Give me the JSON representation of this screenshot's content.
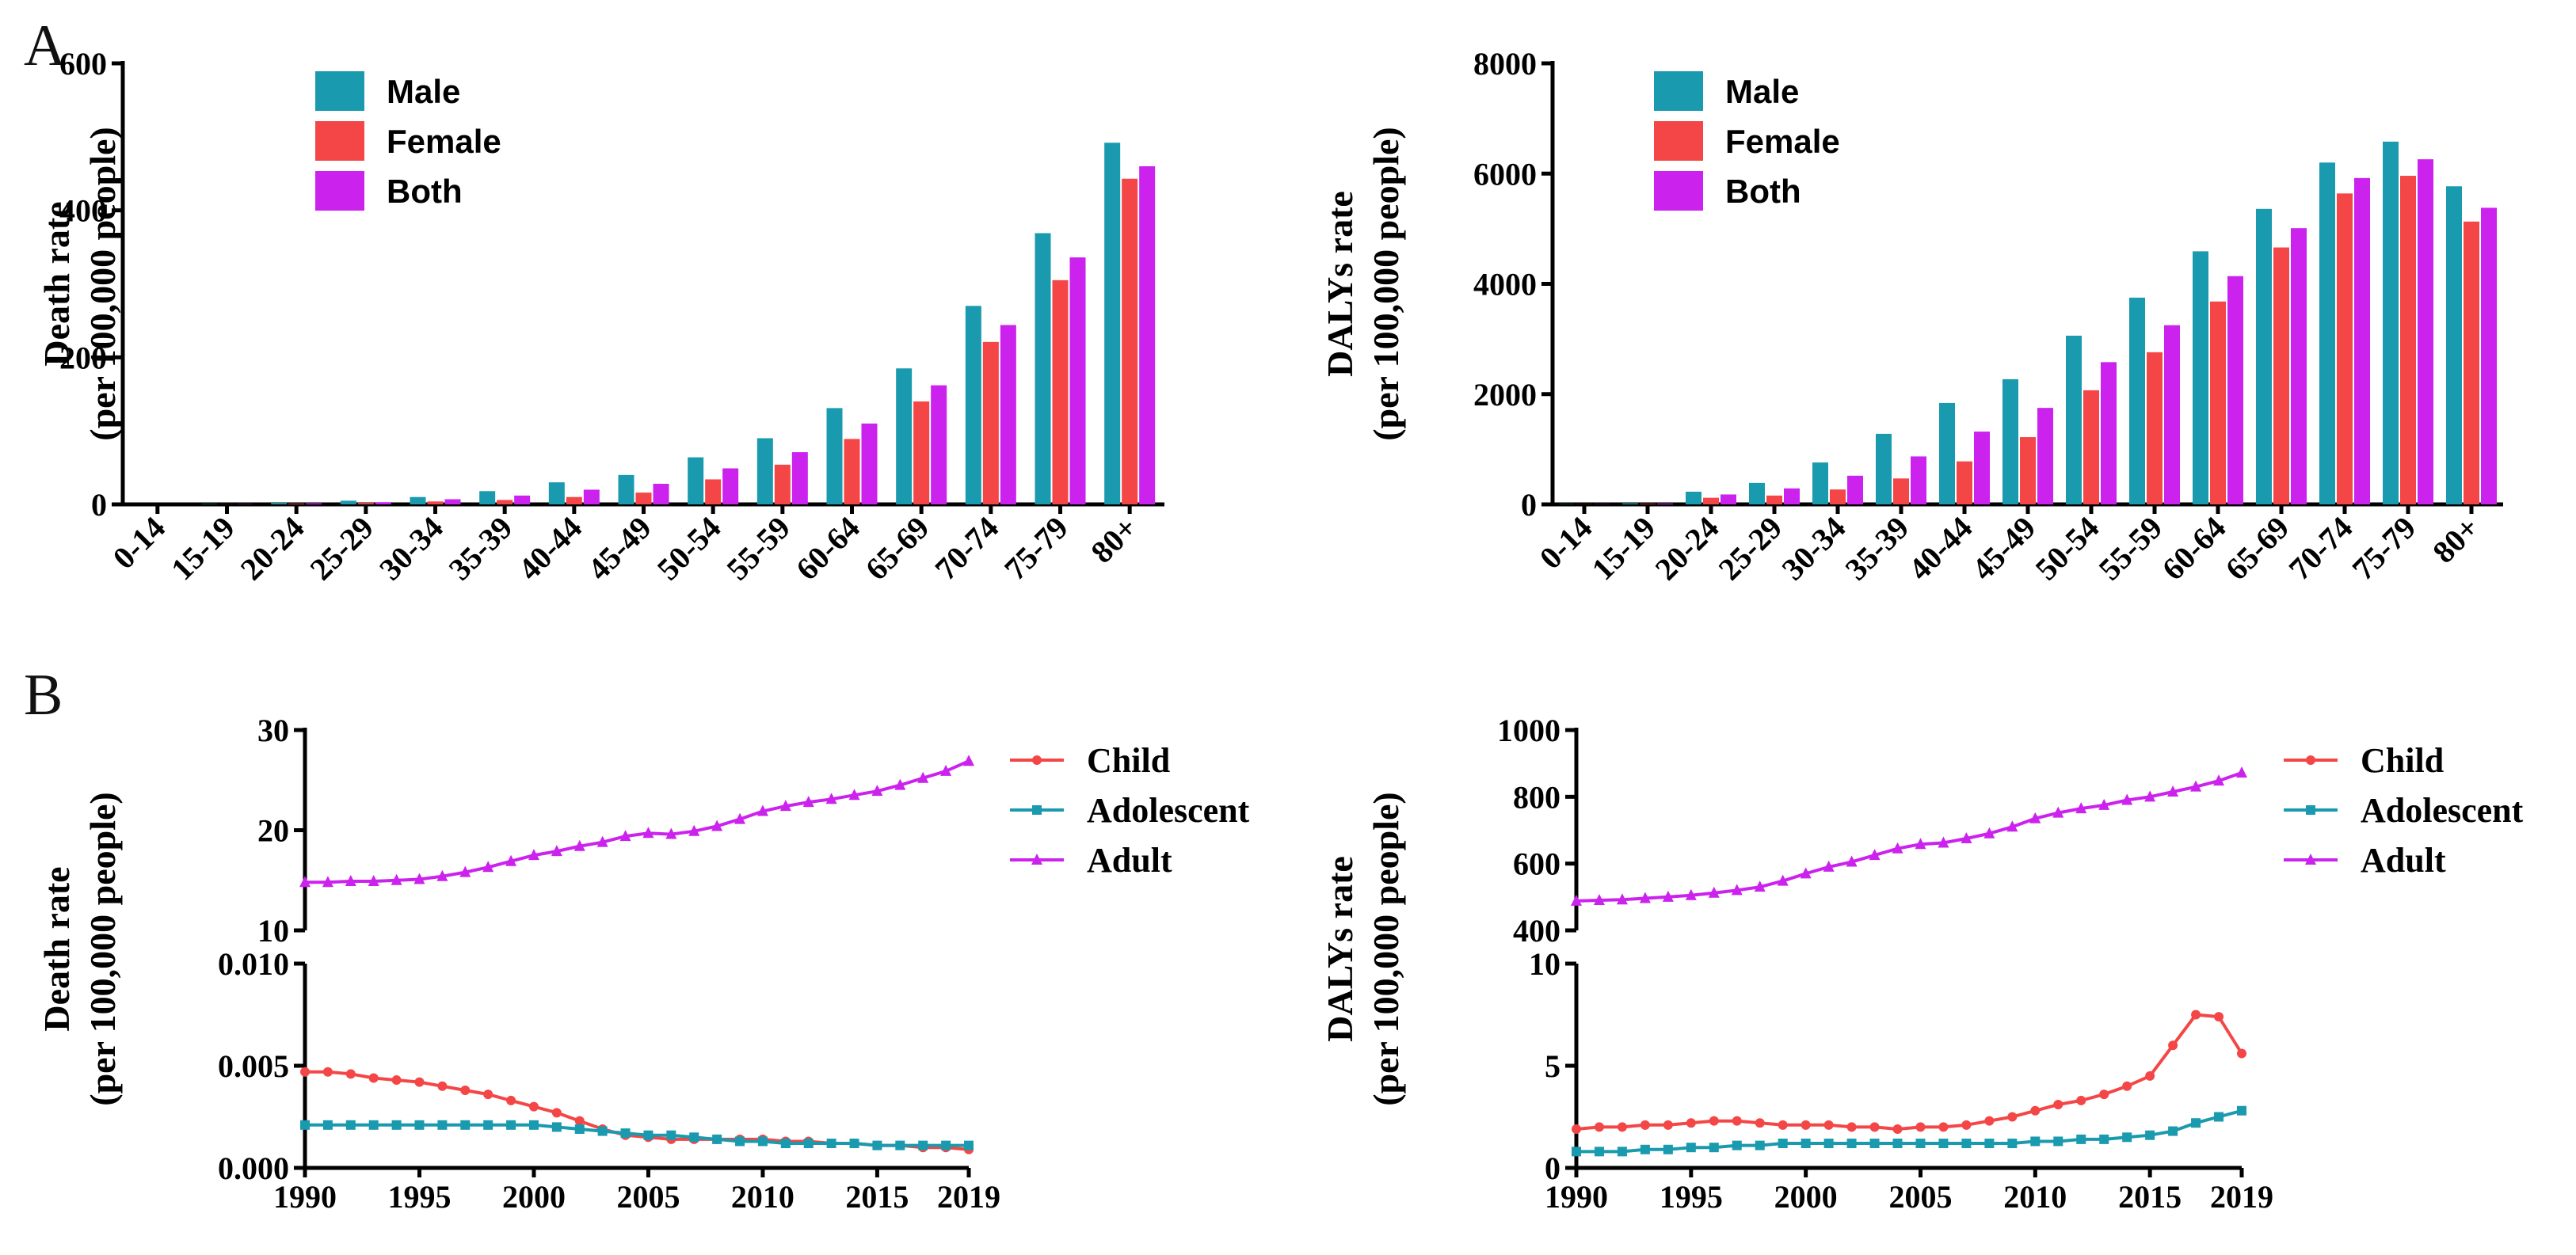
{
  "panel_letters": [
    "A",
    "B"
  ],
  "colors": {
    "male": "#1a9aae",
    "female": "#f44646",
    "both": "#cc22ee",
    "child": "#f44646",
    "adolescent": "#1a9aae",
    "adult": "#cc22ee"
  },
  "chart_data": [
    {
      "type": "bar",
      "panel": "A",
      "ylabel_line1": "Death rate",
      "ylabel_line2": "(per 100,000 people)",
      "ylim": [
        0,
        600
      ],
      "yticks": [
        0,
        200,
        400,
        600
      ],
      "categories": [
        "0-14",
        "15-19",
        "20-24",
        "25-29",
        "30-34",
        "35-39",
        "40-44",
        "45-49",
        "50-54",
        "55-59",
        "60-64",
        "65-69",
        "70-74",
        "75-79",
        "80+"
      ],
      "legend_position": "top-left",
      "series": [
        {
          "name": "Male",
          "values": [
            0,
            0.5,
            2,
            5,
            10,
            18,
            30,
            40,
            64,
            90,
            131,
            185,
            270,
            369,
            492
          ]
        },
        {
          "name": "Female",
          "values": [
            0,
            0.2,
            1,
            2,
            4,
            6,
            10,
            16,
            34,
            54,
            89,
            140,
            221,
            305,
            443
          ]
        },
        {
          "name": "Both",
          "values": [
            0,
            0.4,
            1.5,
            3,
            7,
            12,
            20,
            28,
            49,
            71,
            110,
            162,
            244,
            336,
            460
          ]
        }
      ]
    },
    {
      "type": "bar",
      "panel": "A",
      "ylabel_line1": "DALYs  rate",
      "ylabel_line2": "(per 100,000 people)",
      "ylim": [
        0,
        8000
      ],
      "yticks": [
        0,
        2000,
        4000,
        6000,
        8000
      ],
      "categories": [
        "0-14",
        "15-19",
        "20-24",
        "25-29",
        "30-34",
        "35-39",
        "40-44",
        "45-49",
        "50-54",
        "55-59",
        "60-64",
        "65-69",
        "70-74",
        "75-79",
        "80+"
      ],
      "legend_position": "top-left",
      "series": [
        {
          "name": "Male",
          "values": [
            5,
            20,
            230,
            390,
            760,
            1280,
            1840,
            2270,
            3060,
            3750,
            4590,
            5360,
            6200,
            6580,
            5770
          ]
        },
        {
          "name": "Female",
          "values": [
            3,
            10,
            120,
            160,
            270,
            470,
            780,
            1220,
            2070,
            2760,
            3680,
            4660,
            5640,
            5960,
            5130
          ]
        },
        {
          "name": "Both",
          "values": [
            4,
            15,
            180,
            290,
            520,
            870,
            1320,
            1750,
            2580,
            3250,
            4140,
            5010,
            5920,
            6260,
            5380
          ]
        }
      ]
    },
    {
      "type": "line",
      "panel": "B",
      "ylabel_line1": "Death rate",
      "ylabel_line2": "(per 100,000 people)",
      "x": [
        1990,
        1991,
        1992,
        1993,
        1994,
        1995,
        1996,
        1997,
        1998,
        1999,
        2000,
        2001,
        2002,
        2003,
        2004,
        2005,
        2006,
        2007,
        2008,
        2009,
        2010,
        2011,
        2012,
        2013,
        2014,
        2015,
        2016,
        2017,
        2018,
        2019
      ],
      "xticks": [
        1990,
        1995,
        2000,
        2005,
        2010,
        2015,
        2019
      ],
      "broken_axis": true,
      "upper_ylim": [
        10,
        30
      ],
      "upper_yticks": [
        10,
        20,
        30
      ],
      "lower_ylim": [
        0,
        0.01
      ],
      "lower_yticks": [
        "0.000",
        "0.005",
        "0.010"
      ],
      "legend_position": "right",
      "series": [
        {
          "name": "Child",
          "segment": "lower",
          "values": [
            0.0047,
            0.0047,
            0.0046,
            0.0044,
            0.0043,
            0.0042,
            0.004,
            0.0038,
            0.0036,
            0.0033,
            0.003,
            0.0027,
            0.0023,
            0.0019,
            0.0016,
            0.0015,
            0.0014,
            0.0014,
            0.0014,
            0.0014,
            0.0014,
            0.0013,
            0.0013,
            0.0012,
            0.0012,
            0.0011,
            0.0011,
            0.001,
            0.001,
            0.0009
          ]
        },
        {
          "name": "Adolescent",
          "segment": "lower",
          "values": [
            0.0021,
            0.0021,
            0.0021,
            0.0021,
            0.0021,
            0.0021,
            0.0021,
            0.0021,
            0.0021,
            0.0021,
            0.0021,
            0.002,
            0.0019,
            0.0018,
            0.0017,
            0.0016,
            0.0016,
            0.0015,
            0.0014,
            0.0013,
            0.0013,
            0.0012,
            0.0012,
            0.0012,
            0.0012,
            0.0011,
            0.0011,
            0.0011,
            0.0011,
            0.0011
          ]
        },
        {
          "name": "Adult",
          "segment": "upper",
          "values": [
            14.8,
            14.8,
            14.9,
            14.9,
            15.0,
            15.1,
            15.4,
            15.8,
            16.3,
            16.9,
            17.5,
            17.9,
            18.4,
            18.8,
            19.4,
            19.7,
            19.6,
            19.9,
            20.4,
            21.1,
            21.9,
            22.4,
            22.8,
            23.1,
            23.5,
            23.9,
            24.5,
            25.2,
            25.9,
            26.9
          ]
        }
      ]
    },
    {
      "type": "line",
      "panel": "B",
      "ylabel_line1": "DALYs  rate",
      "ylabel_line2": "(per 100,000 people)",
      "x": [
        1990,
        1991,
        1992,
        1993,
        1994,
        1995,
        1996,
        1997,
        1998,
        1999,
        2000,
        2001,
        2002,
        2003,
        2004,
        2005,
        2006,
        2007,
        2008,
        2009,
        2010,
        2011,
        2012,
        2013,
        2014,
        2015,
        2016,
        2017,
        2018,
        2019
      ],
      "xticks": [
        1990,
        1995,
        2000,
        2005,
        2010,
        2015,
        2019
      ],
      "broken_axis": true,
      "upper_ylim": [
        400,
        1000
      ],
      "upper_yticks": [
        400,
        600,
        800,
        1000
      ],
      "lower_ylim": [
        0,
        10
      ],
      "lower_yticks": [
        0,
        5,
        10
      ],
      "legend_position": "right",
      "series": [
        {
          "name": "Child",
          "segment": "lower",
          "values": [
            1.9,
            2.0,
            2.0,
            2.1,
            2.1,
            2.2,
            2.3,
            2.3,
            2.2,
            2.1,
            2.1,
            2.1,
            2.0,
            2.0,
            1.9,
            2.0,
            2.0,
            2.1,
            2.3,
            2.5,
            2.8,
            3.1,
            3.3,
            3.6,
            4.0,
            4.5,
            6.0,
            7.5,
            7.4,
            5.6
          ]
        },
        {
          "name": "Adolescent",
          "segment": "lower",
          "values": [
            0.8,
            0.8,
            0.8,
            0.9,
            0.9,
            1.0,
            1.0,
            1.1,
            1.1,
            1.2,
            1.2,
            1.2,
            1.2,
            1.2,
            1.2,
            1.2,
            1.2,
            1.2,
            1.2,
            1.2,
            1.3,
            1.3,
            1.4,
            1.4,
            1.5,
            1.6,
            1.8,
            2.2,
            2.5,
            2.8
          ]
        },
        {
          "name": "Adult",
          "segment": "upper",
          "values": [
            488,
            490,
            492,
            496,
            500,
            505,
            512,
            520,
            530,
            548,
            570,
            590,
            605,
            625,
            645,
            658,
            662,
            675,
            690,
            710,
            735,
            752,
            765,
            775,
            790,
            800,
            815,
            830,
            848,
            872
          ]
        }
      ]
    }
  ]
}
